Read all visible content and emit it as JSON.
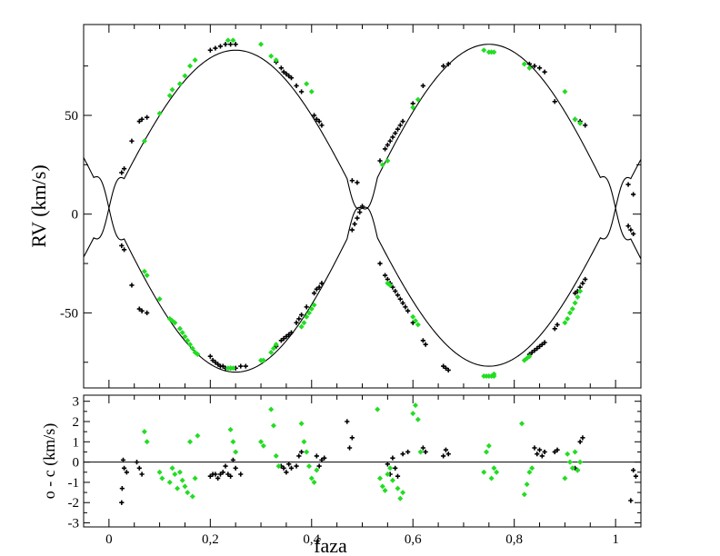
{
  "colors": {
    "primary": "#000000",
    "secondary": "#22dd22",
    "model": "#000000",
    "background": "#ffffff"
  },
  "chart_data": [
    {
      "type": "scatter",
      "title": "",
      "xlabel": "",
      "ylabel": "RV  (km/s)",
      "xlim": [
        -0.05,
        1.05
      ],
      "ylim": [
        -88,
        96
      ],
      "x_ticks": [
        0,
        0.2,
        0.4,
        0.6,
        0.8,
        1
      ],
      "x_tick_labels": [
        "",
        "",
        "",
        "",
        "",
        ""
      ],
      "y_ticks": [
        -50,
        0,
        50
      ],
      "y_tick_labels": [
        "-50",
        "0",
        "50"
      ],
      "grid": false,
      "legend": "none",
      "model": {
        "gamma": 3.0,
        "K_black": 80.0,
        "K_green": 83.0
      },
      "series": [
        {
          "color": "#000000",
          "marker": "plus",
          "x": [
            0.025,
            0.03,
            0.045,
            0.06,
            0.065,
            0.075,
            0.2,
            0.205,
            0.21,
            0.215,
            0.22,
            0.225,
            0.23,
            0.24,
            0.25,
            0.26,
            0.27,
            0.33,
            0.34,
            0.345,
            0.35,
            0.355,
            0.36,
            0.37,
            0.375,
            0.38,
            0.39,
            0.405,
            0.41,
            0.415,
            0.42,
            0.48,
            0.485,
            0.49,
            0.495,
            0.5,
            0.535,
            0.545,
            0.55,
            0.555,
            0.56,
            0.565,
            0.57,
            0.575,
            0.58,
            0.585,
            0.59,
            0.6,
            0.62,
            0.625,
            0.66,
            0.665,
            0.67,
            0.83,
            0.835,
            0.84,
            0.845,
            0.85,
            0.855,
            0.86,
            0.88,
            0.885,
            0.92,
            0.925,
            0.93,
            0.935,
            0.94,
            1.025,
            1.03,
            1.035
          ],
          "y": [
            -16,
            -18,
            -36,
            -48,
            -49,
            -50,
            -72,
            -74,
            -75,
            -76,
            -77,
            -77,
            -78,
            -78,
            -78,
            -77,
            -77,
            -67,
            -64,
            -63,
            -62,
            -61,
            -60,
            -55,
            -53,
            -51,
            -47,
            -40,
            -38,
            -37,
            -35,
            -8,
            -5,
            -2,
            1,
            4,
            -25,
            -31,
            -33,
            -35,
            -37,
            -39,
            -41,
            -43,
            -45,
            -47,
            -49,
            -55,
            -64,
            -66,
            -77,
            -78,
            -79,
            -71,
            -70,
            -69,
            -68,
            -67,
            -66,
            -65,
            -58,
            -56,
            -40,
            -39,
            -37,
            -35,
            -33,
            -6,
            -8,
            -10
          ]
        },
        {
          "color": "#22dd22",
          "marker": "diamond",
          "x": [
            0.07,
            0.075,
            0.1,
            0.12,
            0.125,
            0.13,
            0.14,
            0.145,
            0.15,
            0.155,
            0.16,
            0.165,
            0.17,
            0.175,
            0.235,
            0.24,
            0.245,
            0.3,
            0.305,
            0.32,
            0.325,
            0.33,
            0.38,
            0.385,
            0.39,
            0.395,
            0.4,
            0.405,
            0.55,
            0.555,
            0.6,
            0.605,
            0.61,
            0.74,
            0.745,
            0.75,
            0.755,
            0.76,
            0.76,
            0.82,
            0.825,
            0.83,
            0.9,
            0.905,
            0.91,
            0.915,
            0.92,
            0.925,
            0.93
          ],
          "y": [
            -29,
            -31,
            -43,
            -53,
            -54,
            -55,
            -58,
            -60,
            -62,
            -64,
            -66,
            -68,
            -70,
            -71,
            -78,
            -78,
            -78,
            -74,
            -74,
            -70,
            -68,
            -66,
            -57,
            -55,
            -52,
            -50,
            -48,
            -46,
            -35,
            -36,
            -52,
            -54,
            -56,
            -82,
            -82,
            -82,
            -82,
            -82,
            -81,
            -74,
            -73,
            -72,
            -55,
            -53,
            -50,
            -48,
            -45,
            -42,
            -39
          ]
        },
        {
          "color": "#000000",
          "marker": "plus",
          "x": [
            0.025,
            0.03,
            0.045,
            0.06,
            0.065,
            0.075,
            0.2,
            0.21,
            0.22,
            0.23,
            0.24,
            0.25,
            0.33,
            0.34,
            0.345,
            0.35,
            0.355,
            0.36,
            0.37,
            0.38,
            0.405,
            0.41,
            0.415,
            0.42,
            0.48,
            0.49,
            0.535,
            0.545,
            0.55,
            0.555,
            0.56,
            0.565,
            0.57,
            0.575,
            0.58,
            0.6,
            0.62,
            0.66,
            0.67,
            0.83,
            0.84,
            0.85,
            0.86,
            0.88,
            0.92,
            0.93,
            0.94,
            1.025,
            1.035
          ],
          "y": [
            21,
            23,
            37,
            47,
            48,
            49,
            83,
            84,
            85,
            86,
            86,
            86,
            77,
            74,
            72,
            71,
            70,
            69,
            65,
            62,
            50,
            48,
            47,
            45,
            17,
            16,
            27,
            33,
            35,
            37,
            39,
            41,
            43,
            45,
            47,
            56,
            65,
            75,
            76,
            76,
            75,
            74,
            72,
            57,
            48,
            47,
            45,
            15,
            10
          ]
        },
        {
          "color": "#22dd22",
          "marker": "diamond",
          "x": [
            0.07,
            0.1,
            0.12,
            0.125,
            0.14,
            0.15,
            0.16,
            0.17,
            0.235,
            0.245,
            0.3,
            0.32,
            0.33,
            0.39,
            0.4,
            0.54,
            0.55,
            0.6,
            0.61,
            0.74,
            0.75,
            0.755,
            0.76,
            0.82,
            0.83,
            0.9,
            0.92,
            0.93
          ],
          "y": [
            37,
            51,
            60,
            63,
            66,
            70,
            75,
            78,
            88,
            88,
            86,
            80,
            78,
            66,
            62,
            25,
            27,
            54,
            58,
            83,
            82,
            82,
            82,
            76,
            74,
            62,
            48,
            46
          ]
        }
      ]
    },
    {
      "type": "scatter",
      "title": "",
      "xlabel": "faza",
      "ylabel": "o - c  (km/s)",
      "xlim": [
        -0.05,
        1.05
      ],
      "ylim": [
        -3.2,
        3.3
      ],
      "x_ticks": [
        0,
        0.2,
        0.4,
        0.6,
        0.8,
        1
      ],
      "x_tick_labels": [
        "0",
        "0,2",
        "0,4",
        "0,6",
        "0,8",
        "1"
      ],
      "y_ticks": [
        -3,
        -2,
        -1,
        0,
        1,
        2,
        3
      ],
      "y_tick_labels": [
        "-3",
        "-2",
        "-1",
        "0",
        "1",
        "2",
        "3"
      ],
      "grid": false,
      "legend": "none",
      "zero_line": 0,
      "series": [
        {
          "color": "#000000",
          "marker": "plus",
          "x": [
            0.025,
            0.026,
            0.028,
            0.03,
            0.035,
            0.055,
            0.06,
            0.065,
            0.2,
            0.205,
            0.21,
            0.215,
            0.22,
            0.225,
            0.23,
            0.235,
            0.24,
            0.245,
            0.25,
            0.26,
            0.34,
            0.345,
            0.35,
            0.355,
            0.36,
            0.37,
            0.375,
            0.38,
            0.41,
            0.415,
            0.42,
            0.425,
            0.47,
            0.475,
            0.48,
            0.55,
            0.555,
            0.56,
            0.565,
            0.57,
            0.58,
            0.59,
            0.62,
            0.625,
            0.66,
            0.665,
            0.67,
            0.84,
            0.845,
            0.85,
            0.855,
            0.86,
            0.88,
            0.885,
            0.92,
            0.925,
            0.93,
            0.935,
            1.03,
            1.035,
            1.04
          ],
          "y": [
            -2.0,
            -1.3,
            0.1,
            -0.3,
            -0.5,
            0.0,
            -0.3,
            -0.6,
            -0.7,
            -0.6,
            -0.6,
            -0.8,
            -0.6,
            -0.5,
            -0.2,
            -0.6,
            -0.7,
            0.1,
            -0.3,
            -0.6,
            -0.2,
            -0.3,
            -0.5,
            -0.1,
            -0.3,
            -0.2,
            0.3,
            0.5,
            0.3,
            -0.2,
            0.1,
            0.2,
            2.0,
            0.7,
            1.2,
            -0.1,
            -0.6,
            0.2,
            -0.3,
            -0.7,
            0.4,
            0.5,
            0.7,
            0.5,
            0.3,
            0.6,
            0.4,
            0.7,
            0.4,
            0.6,
            0.3,
            0.5,
            0.5,
            0.6,
            -0.3,
            -0.4,
            1.0,
            1.2,
            -1.9,
            -0.4,
            -0.7
          ]
        },
        {
          "color": "#22dd22",
          "marker": "diamond",
          "x": [
            0.07,
            0.075,
            0.1,
            0.105,
            0.12,
            0.125,
            0.13,
            0.135,
            0.14,
            0.145,
            0.15,
            0.155,
            0.16,
            0.165,
            0.17,
            0.175,
            0.24,
            0.245,
            0.25,
            0.3,
            0.305,
            0.32,
            0.325,
            0.33,
            0.335,
            0.38,
            0.385,
            0.39,
            0.395,
            0.4,
            0.405,
            0.41,
            0.53,
            0.535,
            0.54,
            0.545,
            0.55,
            0.555,
            0.56,
            0.57,
            0.575,
            0.58,
            0.6,
            0.605,
            0.61,
            0.615,
            0.74,
            0.745,
            0.75,
            0.755,
            0.76,
            0.765,
            0.815,
            0.82,
            0.825,
            0.83,
            0.835,
            0.9,
            0.905,
            0.91,
            0.915,
            0.92,
            0.925,
            0.93
          ],
          "y": [
            1.5,
            1.0,
            -0.5,
            -0.8,
            -1.0,
            -0.3,
            -0.6,
            -1.3,
            -0.5,
            -0.9,
            -1.2,
            -1.5,
            1.0,
            -1.7,
            -0.8,
            1.3,
            1.6,
            1.0,
            0.5,
            1.0,
            0.8,
            2.6,
            1.8,
            0.3,
            -0.2,
            1.9,
            1.0,
            0.5,
            -0.2,
            -0.8,
            -1.0,
            -0.4,
            2.6,
            -0.8,
            -1.2,
            -1.4,
            -0.6,
            -0.3,
            -0.9,
            -1.3,
            -1.8,
            -1.5,
            2.4,
            2.8,
            2.1,
            0.5,
            -0.5,
            0.5,
            0.8,
            -0.8,
            -0.3,
            -0.5,
            1.9,
            -1.6,
            -1.1,
            -0.5,
            -0.3,
            -0.8,
            0.4,
            0.0,
            -0.3,
            0.5,
            -0.4,
            0.0
          ]
        }
      ]
    }
  ]
}
